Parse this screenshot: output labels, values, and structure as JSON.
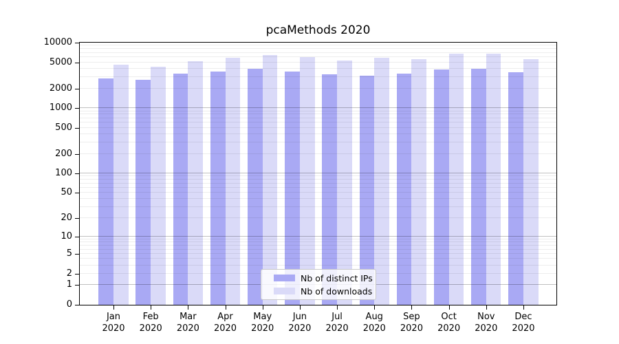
{
  "chart_data": {
    "type": "bar",
    "title": "pcaMethods 2020",
    "categories": [
      "Jan 2020",
      "Feb 2020",
      "Mar 2020",
      "Apr 2020",
      "May 2020",
      "Jun 2020",
      "Jul 2020",
      "Aug 2020",
      "Sep 2020",
      "Oct 2020",
      "Nov 2020",
      "Dec 2020"
    ],
    "series": [
      {
        "name": "Nb of distinct IPs",
        "color": "#a9a9f4",
        "values": [
          2850,
          2700,
          3350,
          3650,
          3950,
          3600,
          3300,
          3150,
          3350,
          3900,
          4000,
          3500
        ]
      },
      {
        "name": "Nb of downloads",
        "color": "#dadaf8",
        "values": [
          4650,
          4300,
          5200,
          5850,
          6450,
          5950,
          5400,
          5850,
          5600,
          6800,
          6750,
          5550
        ]
      }
    ],
    "xlabel": "",
    "ylabel": "",
    "y_axis": {
      "scale": "log10(1+x)",
      "ticks": [
        10000,
        5000,
        2000,
        1000,
        500,
        200,
        100,
        50,
        20,
        10,
        5,
        2,
        1,
        0
      ],
      "range": [
        0,
        10000
      ],
      "major_grid_levels": [
        1,
        10,
        100,
        1000
      ]
    },
    "grid": "horizontal, log minor + major lines drawn over bars",
    "legend_position": "inside bottom-center",
    "legend_items": [
      "Nb of distinct IPs",
      "Nb of downloads"
    ]
  }
}
